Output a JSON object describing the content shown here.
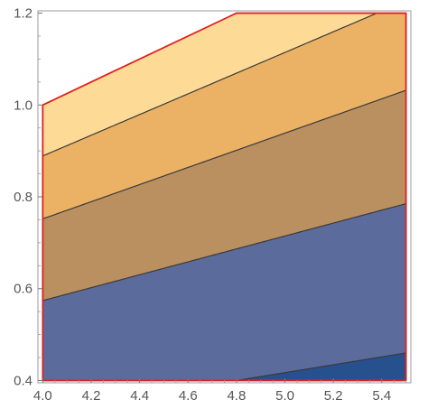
{
  "chart_data": {
    "type": "contour",
    "title": "",
    "xlabel": "",
    "ylabel": "",
    "xlim": [
      3.98,
      5.52
    ],
    "ylim": [
      0.395,
      1.205
    ],
    "grid": false,
    "legend": "none",
    "x_ticks": [
      {
        "value": 4.0,
        "label": "4.0"
      },
      {
        "value": 4.2,
        "label": "4.2"
      },
      {
        "value": 4.4,
        "label": "4.4"
      },
      {
        "value": 4.6,
        "label": "4.6"
      },
      {
        "value": 4.8,
        "label": "4.8"
      },
      {
        "value": 5.0,
        "label": "5.0"
      },
      {
        "value": 5.2,
        "label": "5.2"
      },
      {
        "value": 5.4,
        "label": "5.4"
      }
    ],
    "y_ticks": [
      {
        "value": 0.4,
        "label": "0.4"
      },
      {
        "value": 0.6,
        "label": "0.6"
      },
      {
        "value": 0.8,
        "label": "0.8"
      },
      {
        "value": 1.0,
        "label": "1.0"
      },
      {
        "value": 1.2,
        "label": "1.2"
      }
    ],
    "region_boundary": {
      "color": "#e02020",
      "points": [
        [
          4.0,
          0.4
        ],
        [
          5.5,
          0.4
        ],
        [
          5.5,
          1.2
        ],
        [
          4.8,
          1.2
        ],
        [
          4.0,
          1.0
        ]
      ]
    },
    "contour_lines": [
      {
        "points": [
          [
            4.8,
            0.4
          ],
          [
            5.5,
            0.46
          ]
        ]
      },
      {
        "points": [
          [
            4.0,
            0.574
          ],
          [
            5.5,
            0.785
          ]
        ]
      },
      {
        "points": [
          [
            4.0,
            0.752
          ],
          [
            5.5,
            1.032
          ]
        ]
      },
      {
        "points": [
          [
            4.0,
            0.889
          ],
          [
            5.38,
            1.2
          ]
        ]
      }
    ],
    "bands": [
      {
        "color": "#27508f"
      },
      {
        "color": "#5b6c9c"
      },
      {
        "color": "#bb9060"
      },
      {
        "color": "#ebb265"
      },
      {
        "color": "#fddb97"
      }
    ],
    "contour_line_color": "#3a3a3a"
  }
}
